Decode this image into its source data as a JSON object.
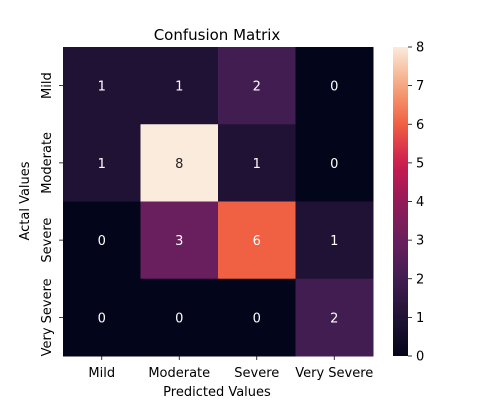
{
  "chart_data": {
    "type": "heatmap",
    "title": "Confusion Matrix",
    "xlabel": "Predicted Values",
    "ylabel": "Actal Values",
    "x_categories": [
      "Mild",
      "Moderate",
      "Severe",
      "Very Severe"
    ],
    "y_categories": [
      "Mild",
      "Moderate",
      "Severe",
      "Very Severe"
    ],
    "values": [
      [
        1,
        1,
        2,
        0
      ],
      [
        1,
        8,
        1,
        0
      ],
      [
        0,
        3,
        6,
        1
      ],
      [
        0,
        0,
        0,
        2
      ]
    ],
    "colorbar": {
      "min": 0,
      "max": 8,
      "ticks": [
        "0",
        "1",
        "2",
        "3",
        "4",
        "5",
        "6",
        "7",
        "8"
      ]
    },
    "colormap": "rocket"
  }
}
